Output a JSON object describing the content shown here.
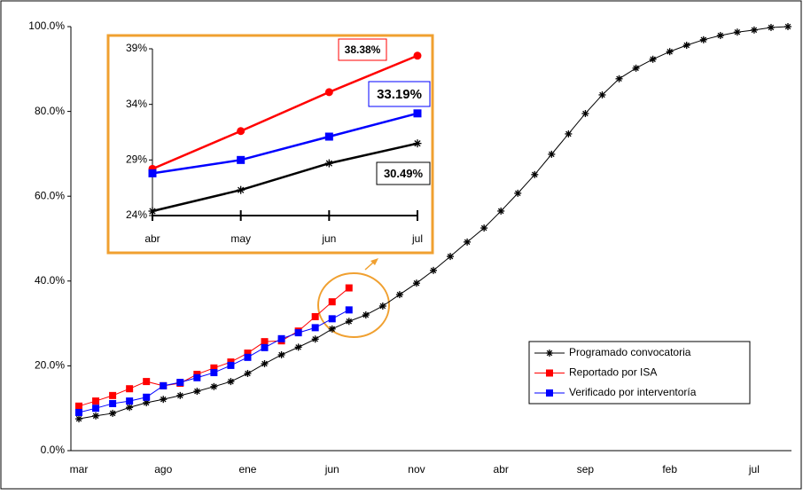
{
  "chart_data": [
    {
      "type": "line",
      "categories": [
        "mar",
        null,
        null,
        null,
        null,
        "ago",
        null,
        null,
        null,
        null,
        "ene",
        null,
        null,
        null,
        null,
        "jun",
        null,
        null,
        null,
        null,
        "nov",
        null,
        null,
        null,
        null,
        "abr",
        null,
        null,
        null,
        null,
        "sep",
        null,
        null,
        null,
        null,
        "feb",
        null,
        null,
        null,
        null,
        "jul",
        null,
        null
      ],
      "ylim": [
        0,
        100
      ],
      "yticks": [
        {
          "value": 0,
          "label": "0.0%"
        },
        {
          "value": 20,
          "label": "20.0%"
        },
        {
          "value": 40,
          "label": "40.0%"
        },
        {
          "value": 60,
          "label": "60.0%"
        },
        {
          "value": 80,
          "label": "80.0%"
        },
        {
          "value": 100,
          "label": "100.0%"
        }
      ],
      "legend": "lower right",
      "series": [
        {
          "name": "Programado convocatoria",
          "color": "#000000",
          "marker": "star",
          "values": [
            7.5,
            8.2,
            8.8,
            10.2,
            11.3,
            12.1,
            13.0,
            14.0,
            15.1,
            16.3,
            18.2,
            20.5,
            22.6,
            24.4,
            26.3,
            28.7,
            30.49,
            32.0,
            34.1,
            36.8,
            39.5,
            42.5,
            45.8,
            49.2,
            52.5,
            56.5,
            60.7,
            65.1,
            69.9,
            74.7,
            79.5,
            83.9,
            87.7,
            90.2,
            92.3,
            94.1,
            95.6,
            96.9,
            97.9,
            98.7,
            99.2,
            99.8,
            100
          ]
        },
        {
          "name": "Reportado por ISA",
          "color": "#ff0000",
          "marker": "square",
          "values": [
            10.5,
            11.7,
            13.0,
            14.6,
            16.3,
            15.3,
            15.9,
            18.0,
            19.5,
            20.9,
            23.0,
            25.7,
            25.9,
            28.2,
            31.6,
            35.1,
            38.38,
            null,
            null,
            null,
            null,
            null,
            null,
            null,
            null,
            null,
            null,
            null,
            null,
            null,
            null,
            null,
            null,
            null,
            null,
            null,
            null,
            null,
            null,
            null,
            null,
            null,
            null
          ]
        },
        {
          "name": "Verificado por interventoría",
          "color": "#0000ff",
          "marker": "square",
          "values": [
            9.0,
            10.0,
            11.1,
            11.7,
            12.6,
            15.3,
            16.1,
            17.2,
            18.4,
            20.1,
            22.0,
            24.3,
            26.4,
            27.8,
            29.0,
            31.1,
            33.19,
            null,
            null,
            null,
            null,
            null,
            null,
            null,
            null,
            null,
            null,
            null,
            null,
            null,
            null,
            null,
            null,
            null,
            null,
            null,
            null,
            null,
            null,
            null,
            null,
            null,
            null
          ]
        }
      ]
    },
    {
      "type": "line",
      "categories": [
        "abr",
        "may",
        "jun",
        "jul"
      ],
      "ylim": [
        24,
        39
      ],
      "yticks": [
        {
          "value": 24,
          "label": "24%"
        },
        {
          "value": 29,
          "label": "29%"
        },
        {
          "value": 34,
          "label": "34%"
        },
        {
          "value": 39,
          "label": "39%"
        }
      ],
      "series": [
        {
          "color": "#ff0000",
          "marker": "circle",
          "values": [
            28.2,
            31.6,
            35.1,
            38.38
          ],
          "value_labels": [
            null,
            null,
            null,
            "38.38%"
          ]
        },
        {
          "color": "#0000ff",
          "marker": "square",
          "values": [
            27.8,
            29.0,
            31.1,
            33.19
          ],
          "value_labels": [
            null,
            null,
            null,
            "33.19%"
          ]
        },
        {
          "color": "#000000",
          "marker": "star",
          "values": [
            24.4,
            26.3,
            28.7,
            30.49
          ],
          "value_labels": [
            null,
            null,
            null,
            "30.49%"
          ]
        }
      ]
    }
  ]
}
